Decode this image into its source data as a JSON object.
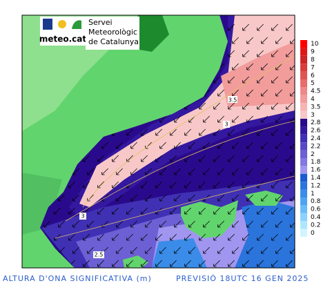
{
  "header": {
    "logo": "meteo.cat",
    "org": [
      "Servei",
      "Meteorològic",
      "de Catalunya"
    ]
  },
  "colorbar": {
    "labels": [
      "10",
      "9",
      "8",
      "7",
      "6",
      "5",
      "4.5",
      "4",
      "3.5",
      "3",
      "2.8",
      "2.6",
      "2.4",
      "2.2",
      "2",
      "1.8",
      "1.6",
      "1.4",
      "1.2",
      "1",
      "0.8",
      "0.6",
      "0.4",
      "0.2",
      "0"
    ],
    "colors": [
      "#ff0000",
      "#e01818",
      "#cc2626",
      "#d83c3c",
      "#e05454",
      "#e86c6c",
      "#ee8888",
      "#f29c9c",
      "#f6b4b4",
      "#f8c8c8",
      "#2a0a8c",
      "#3418a0",
      "#4030b4",
      "#5848c4",
      "#6c60d4",
      "#8478e4",
      "#a096f0",
      "#1a5cd0",
      "#2a74dc",
      "#3a8ce8",
      "#4ea4f2",
      "#6abcf8",
      "#8cd2fc",
      "#aee6fe",
      "#d2f4ff"
    ]
  },
  "contours": [
    "3.5",
    "3",
    "3",
    "2.5"
  ],
  "caption": {
    "left": "ALTURA D'ONA SIGNIFICATIVA (m)",
    "right": "PREVISIÓ 18UTC 16 GEN 2025"
  }
}
